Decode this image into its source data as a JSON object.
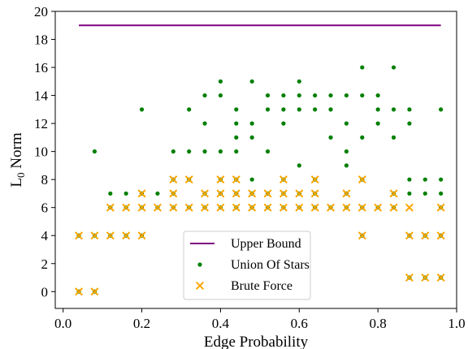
{
  "chart_data": {
    "type": "scatter",
    "title": "",
    "xlabel": "Edge Probability",
    "ylabel_main": "L",
    "ylabel_sub": "0",
    "ylabel_rest": " Norm",
    "xlim": [
      -0.02,
      1.0
    ],
    "ylim": [
      -1.2,
      20
    ],
    "xticks": [
      "0.0",
      "0.2",
      "0.4",
      "0.6",
      "0.8",
      "1.0"
    ],
    "yticks": [
      "0",
      "2",
      "4",
      "6",
      "8",
      "10",
      "12",
      "14",
      "16",
      "18",
      "20"
    ],
    "legend_position": "lower-center",
    "series": [
      {
        "name": "Upper Bound",
        "kind": "line",
        "color": "#800080",
        "x": [
          0.04,
          0.96
        ],
        "y": [
          19,
          19
        ]
      },
      {
        "name": "Union Of Stars",
        "kind": "dot",
        "color": "#008000",
        "points": [
          [
            0.04,
            4
          ],
          [
            0.04,
            0
          ],
          [
            0.08,
            10
          ],
          [
            0.08,
            4
          ],
          [
            0.08,
            0
          ],
          [
            0.12,
            7
          ],
          [
            0.12,
            6
          ],
          [
            0.12,
            4
          ],
          [
            0.16,
            7
          ],
          [
            0.16,
            6
          ],
          [
            0.16,
            4
          ],
          [
            0.2,
            13
          ],
          [
            0.2,
            7
          ],
          [
            0.2,
            6
          ],
          [
            0.2,
            4
          ],
          [
            0.24,
            7
          ],
          [
            0.24,
            6
          ],
          [
            0.28,
            10
          ],
          [
            0.28,
            8
          ],
          [
            0.28,
            7
          ],
          [
            0.28,
            6
          ],
          [
            0.32,
            13
          ],
          [
            0.32,
            10
          ],
          [
            0.32,
            8
          ],
          [
            0.32,
            6
          ],
          [
            0.36,
            14
          ],
          [
            0.36,
            12
          ],
          [
            0.36,
            10
          ],
          [
            0.36,
            7
          ],
          [
            0.36,
            6
          ],
          [
            0.4,
            15
          ],
          [
            0.4,
            14
          ],
          [
            0.4,
            10
          ],
          [
            0.4,
            8
          ],
          [
            0.4,
            7
          ],
          [
            0.4,
            6
          ],
          [
            0.44,
            13
          ],
          [
            0.44,
            12
          ],
          [
            0.44,
            11
          ],
          [
            0.44,
            10
          ],
          [
            0.44,
            8
          ],
          [
            0.44,
            7
          ],
          [
            0.44,
            6
          ],
          [
            0.48,
            15
          ],
          [
            0.48,
            12
          ],
          [
            0.48,
            11
          ],
          [
            0.48,
            8
          ],
          [
            0.48,
            7
          ],
          [
            0.48,
            6
          ],
          [
            0.52,
            14
          ],
          [
            0.52,
            13
          ],
          [
            0.52,
            10
          ],
          [
            0.52,
            7
          ],
          [
            0.52,
            6
          ],
          [
            0.56,
            14
          ],
          [
            0.56,
            13
          ],
          [
            0.56,
            12
          ],
          [
            0.56,
            8
          ],
          [
            0.56,
            7
          ],
          [
            0.56,
            6
          ],
          [
            0.6,
            15
          ],
          [
            0.6,
            14
          ],
          [
            0.6,
            13
          ],
          [
            0.6,
            9
          ],
          [
            0.6,
            7
          ],
          [
            0.6,
            6
          ],
          [
            0.64,
            14
          ],
          [
            0.64,
            13
          ],
          [
            0.64,
            8
          ],
          [
            0.64,
            7
          ],
          [
            0.64,
            6
          ],
          [
            0.68,
            14
          ],
          [
            0.68,
            13
          ],
          [
            0.68,
            11
          ],
          [
            0.68,
            6
          ],
          [
            0.72,
            14
          ],
          [
            0.72,
            12
          ],
          [
            0.72,
            10
          ],
          [
            0.72,
            9
          ],
          [
            0.72,
            7
          ],
          [
            0.72,
            6
          ],
          [
            0.76,
            16
          ],
          [
            0.76,
            14
          ],
          [
            0.76,
            11
          ],
          [
            0.76,
            8
          ],
          [
            0.76,
            6
          ],
          [
            0.76,
            4
          ],
          [
            0.8,
            14
          ],
          [
            0.8,
            13
          ],
          [
            0.8,
            12
          ],
          [
            0.8,
            6
          ],
          [
            0.84,
            16
          ],
          [
            0.84,
            13
          ],
          [
            0.84,
            11
          ],
          [
            0.84,
            7
          ],
          [
            0.84,
            6
          ],
          [
            0.88,
            13
          ],
          [
            0.88,
            12
          ],
          [
            0.88,
            8
          ],
          [
            0.88,
            7
          ],
          [
            0.88,
            4
          ],
          [
            0.88,
            1
          ],
          [
            0.92,
            8
          ],
          [
            0.92,
            7
          ],
          [
            0.92,
            4
          ],
          [
            0.92,
            1
          ],
          [
            0.96,
            13
          ],
          [
            0.96,
            8
          ],
          [
            0.96,
            7
          ],
          [
            0.96,
            6
          ],
          [
            0.96,
            4
          ],
          [
            0.96,
            1
          ]
        ]
      },
      {
        "name": "Brute Force",
        "kind": "cross",
        "color": "#FFA500",
        "points": [
          [
            0.04,
            4
          ],
          [
            0.04,
            0
          ],
          [
            0.08,
            4
          ],
          [
            0.08,
            0
          ],
          [
            0.12,
            6
          ],
          [
            0.12,
            4
          ],
          [
            0.16,
            6
          ],
          [
            0.16,
            4
          ],
          [
            0.2,
            7
          ],
          [
            0.2,
            6
          ],
          [
            0.2,
            4
          ],
          [
            0.24,
            6
          ],
          [
            0.28,
            8
          ],
          [
            0.28,
            7
          ],
          [
            0.28,
            6
          ],
          [
            0.32,
            8
          ],
          [
            0.32,
            6
          ],
          [
            0.36,
            7
          ],
          [
            0.36,
            6
          ],
          [
            0.4,
            8
          ],
          [
            0.4,
            7
          ],
          [
            0.4,
            6
          ],
          [
            0.44,
            8
          ],
          [
            0.44,
            7
          ],
          [
            0.44,
            6
          ],
          [
            0.48,
            7
          ],
          [
            0.48,
            6
          ],
          [
            0.52,
            7
          ],
          [
            0.52,
            6
          ],
          [
            0.56,
            8
          ],
          [
            0.56,
            7
          ],
          [
            0.56,
            6
          ],
          [
            0.6,
            7
          ],
          [
            0.6,
            6
          ],
          [
            0.64,
            8
          ],
          [
            0.64,
            7
          ],
          [
            0.64,
            6
          ],
          [
            0.68,
            6
          ],
          [
            0.72,
            7
          ],
          [
            0.72,
            6
          ],
          [
            0.76,
            8
          ],
          [
            0.76,
            6
          ],
          [
            0.76,
            4
          ],
          [
            0.8,
            6
          ],
          [
            0.84,
            7
          ],
          [
            0.84,
            6
          ],
          [
            0.88,
            6
          ],
          [
            0.88,
            4
          ],
          [
            0.88,
            1
          ],
          [
            0.92,
            4
          ],
          [
            0.92,
            1
          ],
          [
            0.96,
            6
          ],
          [
            0.96,
            4
          ],
          [
            0.96,
            1
          ]
        ]
      }
    ]
  }
}
